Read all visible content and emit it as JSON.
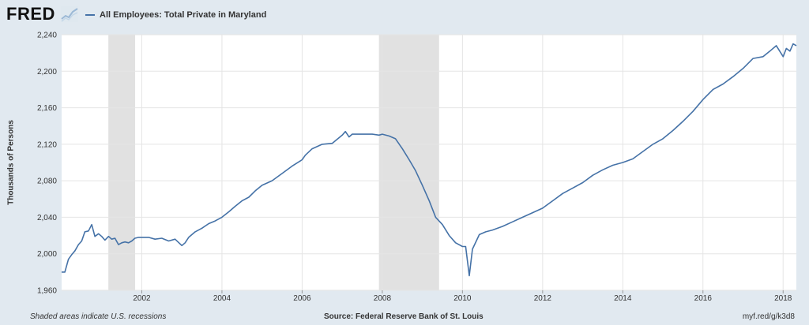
{
  "header": {
    "logo_text": "FRED",
    "logo_icon": "fred-graph-mark-icon",
    "series_label": "All Employees: Total Private in Maryland"
  },
  "footer": {
    "note": "Shaded areas indicate U.S. recessions",
    "source": "Source: Federal Reserve Bank of St. Louis",
    "url": "myf.red/g/k3d8"
  },
  "colors": {
    "series": "#4572a7",
    "recession": "#e1e1e1",
    "grid": "#e5e5e5",
    "plot_background": "#ffffff",
    "page_background": "#e1e9f0"
  },
  "chart_data": {
    "type": "line",
    "title": "",
    "xlabel": "",
    "ylabel": "Thousands of Persons",
    "ylim": [
      1960,
      2240
    ],
    "xlim": [
      2000.0,
      2018.33
    ],
    "yticks": [
      1960,
      2000,
      2040,
      2080,
      2120,
      2160,
      2200,
      2240
    ],
    "ytick_labels": [
      "1,960",
      "2,000",
      "2,040",
      "2,080",
      "2,120",
      "2,160",
      "2,200",
      "2,240"
    ],
    "xticks": [
      2002,
      2004,
      2006,
      2008,
      2010,
      2012,
      2014,
      2016,
      2018
    ],
    "xtick_labels": [
      "2002",
      "2004",
      "2006",
      "2008",
      "2010",
      "2012",
      "2014",
      "2016",
      "2018"
    ],
    "grid": true,
    "legend": "top-left",
    "recessions": [
      {
        "start": "2001-03",
        "end": "2001-11"
      },
      {
        "start": "2007-12",
        "end": "2009-06"
      }
    ],
    "series": [
      {
        "name": "All Employees: Total Private in Maryland",
        "x": [
          2000.0,
          2000.08,
          2000.17,
          2000.25,
          2000.33,
          2000.42,
          2000.5,
          2000.58,
          2000.67,
          2000.75,
          2000.83,
          2000.92,
          2001.0,
          2001.08,
          2001.17,
          2001.25,
          2001.33,
          2001.42,
          2001.5,
          2001.58,
          2001.67,
          2001.75,
          2001.83,
          2001.92,
          2002.0,
          2002.17,
          2002.33,
          2002.5,
          2002.67,
          2002.83,
          2003.0,
          2003.08,
          2003.17,
          2003.25,
          2003.33,
          2003.5,
          2003.67,
          2003.83,
          2004.0,
          2004.17,
          2004.33,
          2004.5,
          2004.67,
          2004.83,
          2005.0,
          2005.25,
          2005.5,
          2005.75,
          2006.0,
          2006.08,
          2006.25,
          2006.5,
          2006.75,
          2007.0,
          2007.08,
          2007.17,
          2007.25,
          2007.5,
          2007.75,
          2007.92,
          2008.0,
          2008.17,
          2008.33,
          2008.5,
          2008.67,
          2008.83,
          2009.0,
          2009.17,
          2009.33,
          2009.5,
          2009.67,
          2009.83,
          2010.0,
          2010.08,
          2010.17,
          2010.25,
          2010.42,
          2010.58,
          2010.75,
          2011.0,
          2011.25,
          2011.5,
          2011.75,
          2012.0,
          2012.25,
          2012.5,
          2012.75,
          2013.0,
          2013.25,
          2013.5,
          2013.75,
          2014.0,
          2014.25,
          2014.5,
          2014.75,
          2015.0,
          2015.25,
          2015.5,
          2015.75,
          2016.0,
          2016.25,
          2016.5,
          2016.75,
          2017.0,
          2017.25,
          2017.5,
          2017.67,
          2017.83,
          2018.0,
          2018.08,
          2018.17,
          2018.25,
          2018.33
        ],
        "values": [
          1980,
          1980,
          1994,
          1999,
          2003,
          2010,
          2014,
          2024,
          2025,
          2032,
          2019,
          2022,
          2019,
          2015,
          2019,
          2016,
          2017,
          2010,
          2012,
          2013,
          2012,
          2014,
          2017,
          2018,
          2018,
          2018,
          2016,
          2017,
          2014,
          2016,
          2009,
          2012,
          2018,
          2021,
          2024,
          2028,
          2033,
          2036,
          2040,
          2046,
          2052,
          2058,
          2062,
          2069,
          2075,
          2080,
          2088,
          2096,
          2103,
          2108,
          2115,
          2120,
          2121,
          2130,
          2134,
          2128,
          2131,
          2131,
          2131,
          2130,
          2131,
          2129,
          2126,
          2115,
          2103,
          2091,
          2075,
          2058,
          2040,
          2032,
          2020,
          2012,
          2008,
          2008,
          1976,
          2005,
          2021,
          2024,
          2026,
          2030,
          2035,
          2040,
          2045,
          2050,
          2058,
          2066,
          2072,
          2078,
          2086,
          2092,
          2097,
          2100,
          2104,
          2112,
          2120,
          2126,
          2135,
          2145,
          2156,
          2169,
          2180,
          2186,
          2194,
          2203,
          2214,
          2216,
          2222,
          2228,
          2216,
          2225,
          2222,
          2230,
          2228
        ]
      }
    ]
  }
}
